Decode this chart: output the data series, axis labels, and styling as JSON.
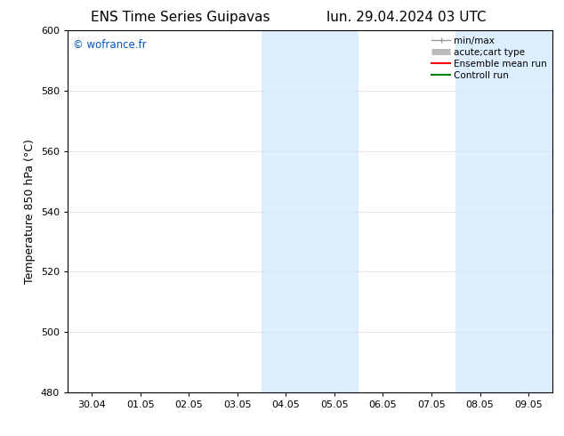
{
  "title_left": "ENS Time Series Guipavas",
  "title_right": "lun. 29.04.2024 03 UTC",
  "ylabel": "Temperature 850 hPa (°C)",
  "watermark": "© wofrance.fr",
  "watermark_color": "#0055bb",
  "ylim": [
    480,
    600
  ],
  "yticks": [
    480,
    500,
    520,
    540,
    560,
    580,
    600
  ],
  "x_tick_labels": [
    "30.04",
    "01.05",
    "02.05",
    "03.05",
    "04.05",
    "05.05",
    "06.05",
    "07.05",
    "08.05",
    "09.05"
  ],
  "x_tick_positions": [
    0,
    1,
    2,
    3,
    4,
    5,
    6,
    7,
    8,
    9
  ],
  "xlim": [
    -0.5,
    9.5
  ],
  "shaded_regions": [
    {
      "xmin": 3.5,
      "xmax": 5.5,
      "color": "#ddeeff"
    },
    {
      "xmin": 7.5,
      "xmax": 9.5,
      "color": "#ddeeff"
    }
  ],
  "legend_entries": [
    {
      "label": "min/max"
    },
    {
      "label": "acute;cart type"
    },
    {
      "label": "Ensemble mean run"
    },
    {
      "label": "Controll run"
    }
  ],
  "bg_color": "#ffffff",
  "grid_color": "#dddddd",
  "tick_fontsize": 8,
  "label_fontsize": 9,
  "title_fontsize": 11
}
